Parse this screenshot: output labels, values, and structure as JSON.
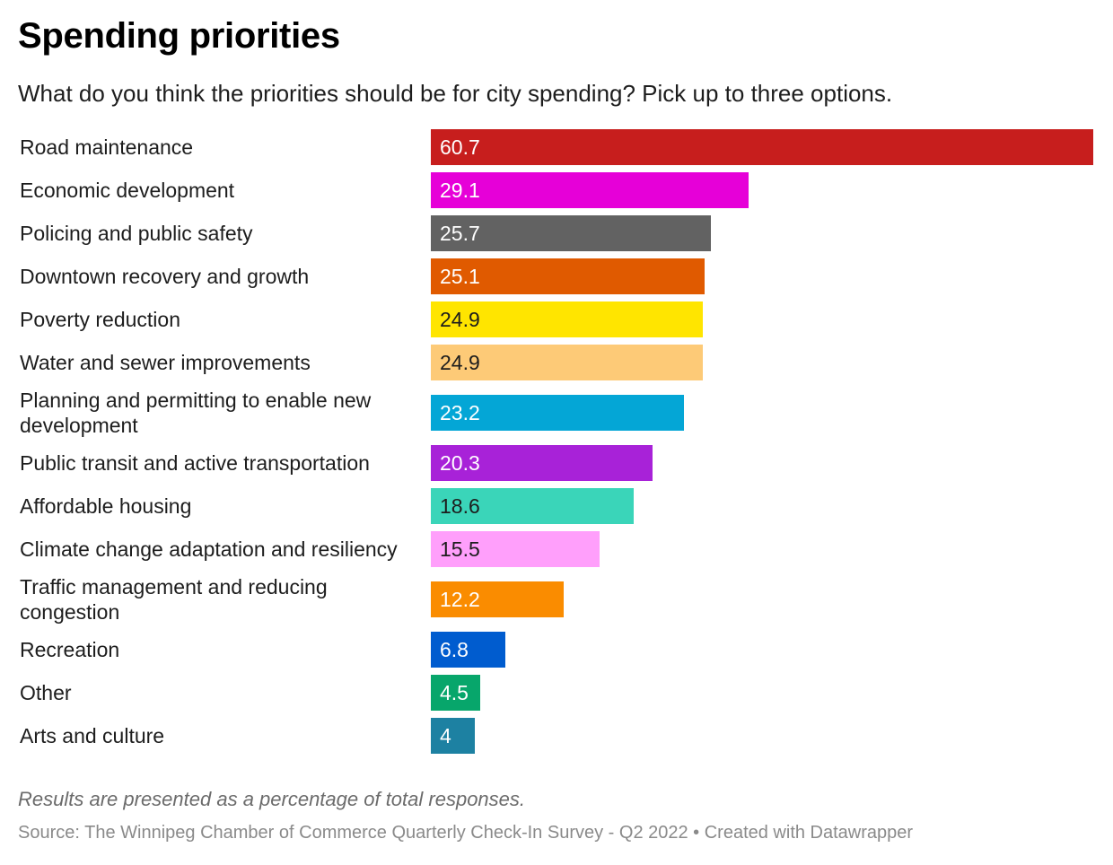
{
  "header": {
    "title": "Spending priorities",
    "subtitle": "What do you think the priorities should be for city spending? Pick up to three options."
  },
  "chart_data": {
    "type": "bar",
    "orientation": "horizontal",
    "title": "Spending priorities",
    "subtitle": "What do you think the priorities should be for city spending? Pick up to three options.",
    "xlim": [
      0,
      60.7
    ],
    "grid": false,
    "categories": [
      "Road maintenance",
      "Economic development",
      "Policing and public safety",
      "Downtown recovery and growth",
      "Poverty reduction",
      "Water and sewer improvements",
      "Planning and permitting to enable new development",
      "Public transit and active transportation",
      "Affordable housing",
      "Climate change adaptation and resiliency",
      "Traffic management and reducing congestion",
      "Recreation",
      "Other",
      "Arts and culture"
    ],
    "values": [
      60.7,
      29.1,
      25.7,
      25.1,
      24.9,
      24.9,
      23.2,
      20.3,
      18.6,
      15.5,
      12.2,
      6.8,
      4.5,
      4
    ],
    "value_labels": [
      "60.7",
      "29.1",
      "25.7",
      "25.1",
      "24.9",
      "24.9",
      "23.2",
      "20.3",
      "18.6",
      "15.5",
      "12.2",
      "6.8",
      "4.5",
      "4"
    ],
    "colors": [
      "#c71e1d",
      "#e600d8",
      "#626262",
      "#e05a00",
      "#ffe500",
      "#fdca77",
      "#04a6d6",
      "#a822d8",
      "#3ad5b9",
      "#ff9ffb",
      "#fa8c00",
      "#005ccf",
      "#07a66b",
      "#1d81a2"
    ],
    "label_colors": [
      "#ffffff",
      "#ffffff",
      "#ffffff",
      "#ffffff",
      "#1d1d1d",
      "#1d1d1d",
      "#ffffff",
      "#ffffff",
      "#1d1d1d",
      "#1d1d1d",
      "#ffffff",
      "#ffffff",
      "#ffffff",
      "#ffffff"
    ]
  },
  "footer": {
    "notes": "Results are presented as a percentage of total responses.",
    "source": "Source: The Winnipeg Chamber of Commerce Quarterly Check-In Survey - Q2 2022 • Created with Datawrapper"
  }
}
